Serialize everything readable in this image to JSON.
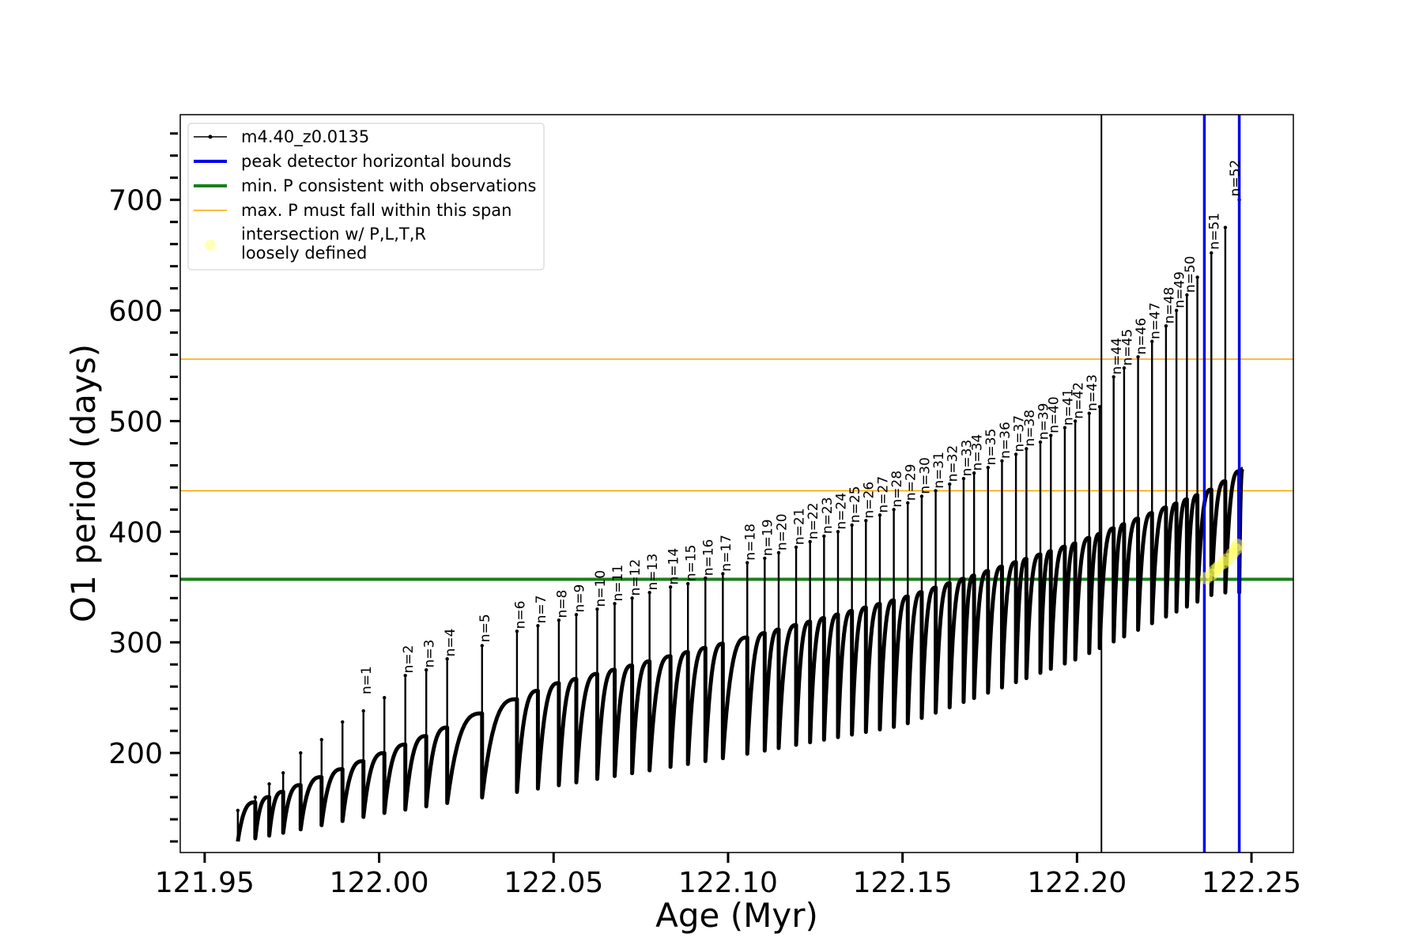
{
  "chart_data": {
    "type": "line",
    "xlabel": "Age (Myr)",
    "ylabel": "O1 period (days)",
    "xlim": [
      121.943,
      122.262
    ],
    "ylim": [
      110,
      777
    ],
    "xticks": [
      121.95,
      122.0,
      122.05,
      122.1,
      122.15,
      122.2,
      122.25
    ],
    "xtick_labels": [
      "121.95",
      "122.00",
      "122.05",
      "122.10",
      "122.15",
      "122.20",
      "122.25"
    ],
    "yticks": [
      200,
      300,
      400,
      500,
      600,
      700
    ],
    "ytick_labels": [
      "200",
      "300",
      "400",
      "500",
      "600",
      "700"
    ],
    "grid": false,
    "legend_position": "top-left",
    "legend": [
      {
        "label": "m4.40_z0.0135",
        "style": "line-marker",
        "color": "#000000"
      },
      {
        "label": "peak detector horizontal bounds",
        "style": "line",
        "color": "#0000ee"
      },
      {
        "label": "min. P consistent with observations",
        "style": "line",
        "color": "#1a7f1a"
      },
      {
        "label": "max. P must fall within this span",
        "style": "thin-line",
        "color": "#ffa500"
      },
      {
        "label": "intersection w/ P,L,T,R",
        "label2": "loosely defined",
        "style": "dot",
        "color": "#ffff66"
      }
    ],
    "horizontal_lines": [
      {
        "name": "min_P",
        "y": 357,
        "color": "#1a7f1a"
      },
      {
        "name": "max_P_low",
        "y": 437,
        "color": "#ffa500"
      },
      {
        "name": "max_P_high",
        "y": 556,
        "color": "#ffa500"
      }
    ],
    "vertical_lines": [
      {
        "name": "marker",
        "x": 122.207,
        "color": "#000000"
      },
      {
        "name": "bound_left",
        "x": 122.2365,
        "color": "#0000ee"
      },
      {
        "name": "bound_right",
        "x": 122.2465,
        "color": "#0000ee"
      }
    ],
    "series_name": "m4.40_z0.0135",
    "track": {
      "x_start": 121.9595,
      "x_end": 122.2475,
      "upper_envelope_x": [
        121.96,
        122.0,
        122.05,
        122.1,
        122.15,
        122.2,
        122.24,
        122.2475
      ],
      "upper_envelope_y": [
        150,
        198,
        262,
        300,
        340,
        390,
        440,
        457
      ],
      "lower_envelope_x": [
        121.96,
        122.0,
        122.05,
        122.1,
        122.15,
        122.2,
        122.24
      ],
      "lower_envelope_y": [
        120,
        145,
        170,
        196,
        225,
        285,
        345
      ]
    },
    "spikes": [
      {
        "x": 121.9595,
        "y": 148
      },
      {
        "x": 121.9645,
        "y": 160
      },
      {
        "x": 121.9685,
        "y": 172
      },
      {
        "x": 121.9725,
        "y": 182
      },
      {
        "x": 121.9775,
        "y": 200
      },
      {
        "x": 121.9835,
        "y": 212
      },
      {
        "x": 121.9895,
        "y": 228
      },
      {
        "x": 121.9955,
        "y": 238
      },
      {
        "x": 122.0015,
        "y": 250
      },
      {
        "x": 122.0075,
        "y": 270
      },
      {
        "x": 122.0135,
        "y": 275
      },
      {
        "x": 122.0195,
        "y": 285
      },
      {
        "x": 122.0295,
        "y": 297
      },
      {
        "x": 122.0395,
        "y": 310
      },
      {
        "x": 122.0455,
        "y": 315
      },
      {
        "x": 122.0515,
        "y": 320
      },
      {
        "x": 122.0565,
        "y": 325
      },
      {
        "x": 122.0625,
        "y": 330
      },
      {
        "x": 122.0675,
        "y": 335
      },
      {
        "x": 122.0725,
        "y": 340
      },
      {
        "x": 122.0775,
        "y": 345
      },
      {
        "x": 122.0835,
        "y": 350
      },
      {
        "x": 122.0885,
        "y": 353
      },
      {
        "x": 122.0935,
        "y": 358
      },
      {
        "x": 122.0985,
        "y": 362
      },
      {
        "x": 122.1055,
        "y": 372
      },
      {
        "x": 122.1105,
        "y": 376
      },
      {
        "x": 122.1145,
        "y": 381
      },
      {
        "x": 122.1195,
        "y": 386
      },
      {
        "x": 122.1235,
        "y": 391
      },
      {
        "x": 122.1275,
        "y": 396
      },
      {
        "x": 122.1315,
        "y": 400
      },
      {
        "x": 122.1355,
        "y": 406
      },
      {
        "x": 122.1395,
        "y": 410
      },
      {
        "x": 122.1435,
        "y": 415
      },
      {
        "x": 122.1475,
        "y": 420
      },
      {
        "x": 122.1515,
        "y": 426
      },
      {
        "x": 122.1555,
        "y": 432
      },
      {
        "x": 122.1595,
        "y": 437
      },
      {
        "x": 122.1635,
        "y": 443
      },
      {
        "x": 122.1675,
        "y": 448
      },
      {
        "x": 122.1705,
        "y": 453
      },
      {
        "x": 122.1745,
        "y": 458
      },
      {
        "x": 122.1785,
        "y": 464
      },
      {
        "x": 122.1825,
        "y": 470
      },
      {
        "x": 122.1855,
        "y": 475
      },
      {
        "x": 122.1895,
        "y": 481
      },
      {
        "x": 122.1925,
        "y": 487
      },
      {
        "x": 122.1965,
        "y": 494
      },
      {
        "x": 122.1995,
        "y": 500
      },
      {
        "x": 122.2035,
        "y": 507
      },
      {
        "x": 122.2065,
        "y": 513
      },
      {
        "x": 122.2105,
        "y": 540
      },
      {
        "x": 122.2135,
        "y": 548
      },
      {
        "x": 122.2175,
        "y": 558
      },
      {
        "x": 122.2215,
        "y": 572
      },
      {
        "x": 122.2255,
        "y": 586
      },
      {
        "x": 122.2285,
        "y": 600
      },
      {
        "x": 122.2315,
        "y": 614
      },
      {
        "x": 122.2345,
        "y": 630
      },
      {
        "x": 122.2385,
        "y": 652
      },
      {
        "x": 122.2425,
        "y": 675
      },
      {
        "x": 122.2465,
        "y": 700
      }
    ],
    "peak_labels": [
      {
        "text": "n=1",
        "x": 121.9965,
        "y": 253
      },
      {
        "text": "n=2",
        "x": 122.0085,
        "y": 272
      },
      {
        "text": "n=3",
        "x": 122.0145,
        "y": 277
      },
      {
        "text": "n=4",
        "x": 122.0205,
        "y": 287
      },
      {
        "text": "n=5",
        "x": 122.0305,
        "y": 300
      },
      {
        "text": "n=6",
        "x": 122.0405,
        "y": 312
      },
      {
        "text": "n=7",
        "x": 122.0465,
        "y": 317
      },
      {
        "text": "n=8",
        "x": 122.0525,
        "y": 322
      },
      {
        "text": "n=9",
        "x": 122.0575,
        "y": 327
      },
      {
        "text": "n=10",
        "x": 122.0635,
        "y": 332
      },
      {
        "text": "n=11",
        "x": 122.0685,
        "y": 337
      },
      {
        "text": "n=12",
        "x": 122.0735,
        "y": 342
      },
      {
        "text": "n=13",
        "x": 122.0785,
        "y": 347
      },
      {
        "text": "n=14",
        "x": 122.0845,
        "y": 352
      },
      {
        "text": "n=15",
        "x": 122.0895,
        "y": 355
      },
      {
        "text": "n=16",
        "x": 122.0945,
        "y": 360
      },
      {
        "text": "n=17",
        "x": 122.0995,
        "y": 364
      },
      {
        "text": "n=18",
        "x": 122.1065,
        "y": 374
      },
      {
        "text": "n=19",
        "x": 122.1115,
        "y": 378
      },
      {
        "text": "n=20",
        "x": 122.1155,
        "y": 383
      },
      {
        "text": "n=21",
        "x": 122.1205,
        "y": 388
      },
      {
        "text": "n=22",
        "x": 122.1245,
        "y": 393
      },
      {
        "text": "n=23",
        "x": 122.1285,
        "y": 398
      },
      {
        "text": "n=24",
        "x": 122.1325,
        "y": 402
      },
      {
        "text": "n=25",
        "x": 122.1365,
        "y": 408
      },
      {
        "text": "n=26",
        "x": 122.1405,
        "y": 412
      },
      {
        "text": "n=27",
        "x": 122.1445,
        "y": 417
      },
      {
        "text": "n=28",
        "x": 122.1485,
        "y": 422
      },
      {
        "text": "n=29",
        "x": 122.1525,
        "y": 428
      },
      {
        "text": "n=30",
        "x": 122.1565,
        "y": 434
      },
      {
        "text": "n=31",
        "x": 122.1605,
        "y": 439
      },
      {
        "text": "n=32",
        "x": 122.1645,
        "y": 445
      },
      {
        "text": "n=33",
        "x": 122.1685,
        "y": 450
      },
      {
        "text": "n=34",
        "x": 122.1715,
        "y": 455
      },
      {
        "text": "n=35",
        "x": 122.1755,
        "y": 460
      },
      {
        "text": "n=36",
        "x": 122.1795,
        "y": 466
      },
      {
        "text": "n=37",
        "x": 122.1835,
        "y": 472
      },
      {
        "text": "n=38",
        "x": 122.1865,
        "y": 477
      },
      {
        "text": "n=39",
        "x": 122.1905,
        "y": 483
      },
      {
        "text": "n=40",
        "x": 122.1935,
        "y": 489
      },
      {
        "text": "n=41",
        "x": 122.1975,
        "y": 496
      },
      {
        "text": "n=42",
        "x": 122.2005,
        "y": 502
      },
      {
        "text": "n=43",
        "x": 122.2045,
        "y": 509
      },
      {
        "text": "n=44",
        "x": 122.2115,
        "y": 542
      },
      {
        "text": "n=45",
        "x": 122.2145,
        "y": 550
      },
      {
        "text": "n=46",
        "x": 122.2185,
        "y": 560
      },
      {
        "text": "n=47",
        "x": 122.2225,
        "y": 574
      },
      {
        "text": "n=48",
        "x": 122.2265,
        "y": 588
      },
      {
        "text": "n=49",
        "x": 122.2295,
        "y": 602
      },
      {
        "text": "n=50",
        "x": 122.2325,
        "y": 616
      },
      {
        "text": "n=51",
        "x": 122.2395,
        "y": 655
      },
      {
        "text": "n=52",
        "x": 122.2455,
        "y": 703
      }
    ],
    "intersection_points": [
      {
        "x": 122.237,
        "y": 358
      },
      {
        "x": 122.2385,
        "y": 361
      },
      {
        "x": 122.2395,
        "y": 365
      },
      {
        "x": 122.2405,
        "y": 368
      },
      {
        "x": 122.242,
        "y": 372
      },
      {
        "x": 122.243,
        "y": 375
      },
      {
        "x": 122.2445,
        "y": 380
      },
      {
        "x": 122.2455,
        "y": 384
      },
      {
        "x": 122.246,
        "y": 388
      }
    ]
  }
}
